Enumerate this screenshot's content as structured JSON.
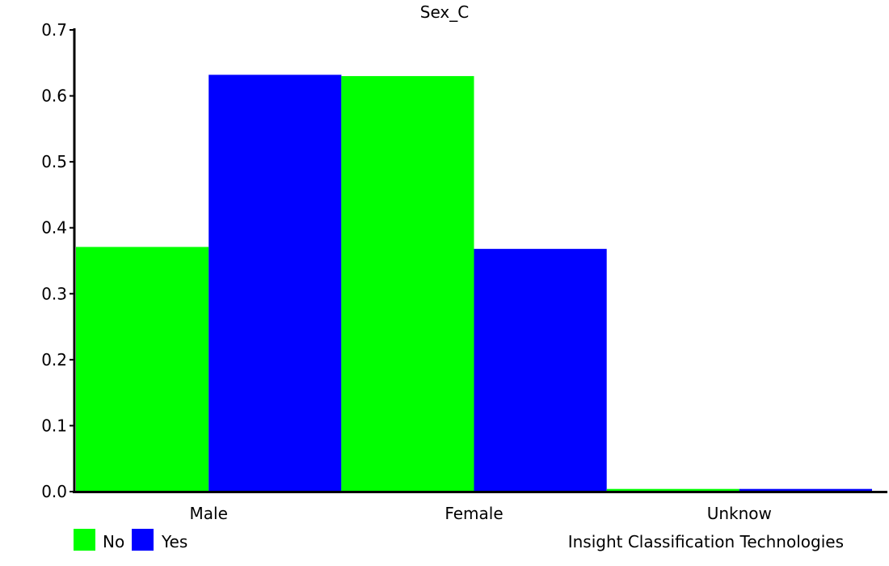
{
  "chart_data": {
    "type": "bar",
    "title": "Sex_C",
    "xlabel": "",
    "ylabel": "",
    "categories": [
      "Male",
      "Female",
      "Unknow"
    ],
    "series": [
      {
        "name": "No",
        "color": "#00ff00",
        "values": [
          0.371,
          0.63,
          0.004
        ]
      },
      {
        "name": "Yes",
        "color": "#0000ff",
        "values": [
          0.632,
          0.368,
          0.004
        ]
      }
    ],
    "ylim": [
      0,
      0.7
    ],
    "yticks": [
      "0.0",
      "0.1",
      "0.2",
      "0.3",
      "0.4",
      "0.5",
      "0.6",
      "0.7"
    ],
    "grid": false,
    "legend_position": "bottom-left"
  },
  "footer": {
    "credit": "Insight Classification Technologies"
  }
}
